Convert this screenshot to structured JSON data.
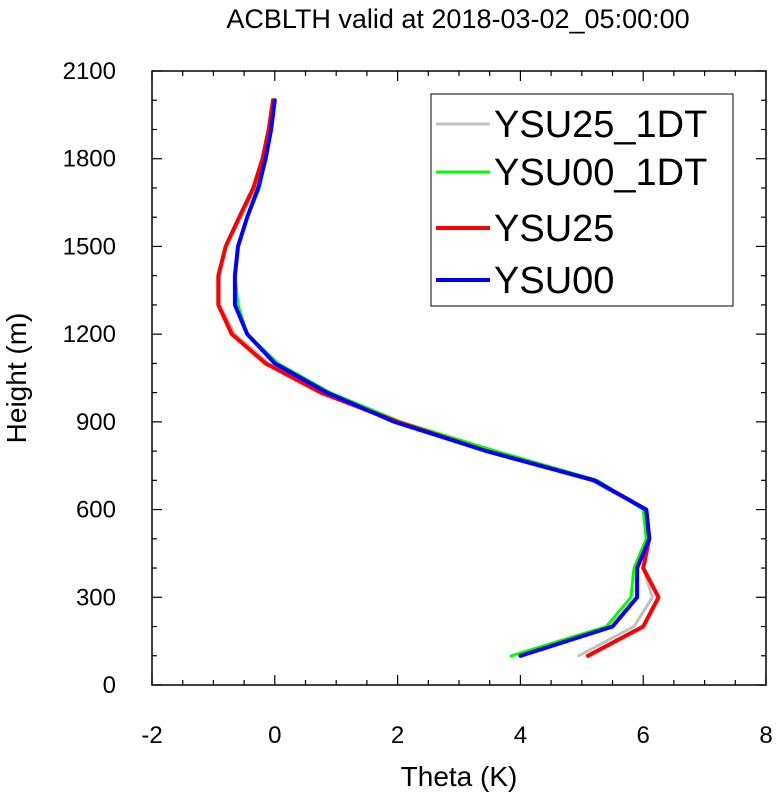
{
  "chart_data": {
    "type": "line",
    "title": "ACBLTH valid at 2018-03-02_05:00:00",
    "xlabel": "Theta (K)",
    "ylabel": "Height (m)",
    "xlim": [
      -2,
      8
    ],
    "ylim": [
      0,
      2100
    ],
    "xticks": [
      "-2",
      "0",
      "2",
      "4",
      "6",
      "8"
    ],
    "yticks": [
      "0",
      "300",
      "600",
      "900",
      "1200",
      "1500",
      "1800",
      "2100"
    ],
    "legend_position": "top-right",
    "series": [
      {
        "name": "YSU25_1DT",
        "color": "#c0c0c0",
        "width": 3,
        "points": [
          [
            4.95,
            100
          ],
          [
            5.85,
            200
          ],
          [
            6.15,
            300
          ],
          [
            6.0,
            400
          ],
          [
            6.1,
            500
          ],
          [
            6.05,
            600
          ],
          [
            5.15,
            700
          ],
          [
            3.45,
            800
          ],
          [
            1.95,
            900
          ],
          [
            0.8,
            1000
          ],
          [
            -0.1,
            1100
          ],
          [
            -0.65,
            1200
          ],
          [
            -0.9,
            1300
          ],
          [
            -0.9,
            1400
          ],
          [
            -0.8,
            1500
          ],
          [
            -0.55,
            1600
          ],
          [
            -0.32,
            1700
          ],
          [
            -0.18,
            1800
          ],
          [
            -0.08,
            1900
          ],
          [
            -0.02,
            2000
          ]
        ]
      },
      {
        "name": "YSU00_1DT",
        "color": "#00ff00",
        "width": 3,
        "points": [
          [
            3.85,
            100
          ],
          [
            5.4,
            200
          ],
          [
            5.8,
            300
          ],
          [
            5.85,
            400
          ],
          [
            6.05,
            500
          ],
          [
            6.0,
            600
          ],
          [
            5.25,
            700
          ],
          [
            3.6,
            800
          ],
          [
            2.05,
            900
          ],
          [
            0.9,
            1000
          ],
          [
            0.05,
            1100
          ],
          [
            -0.45,
            1200
          ],
          [
            -0.6,
            1300
          ],
          [
            -0.65,
            1400
          ],
          [
            -0.6,
            1500
          ],
          [
            -0.45,
            1600
          ],
          [
            -0.25,
            1700
          ],
          [
            -0.15,
            1800
          ],
          [
            -0.06,
            1900
          ],
          [
            0.0,
            2000
          ]
        ]
      },
      {
        "name": "YSU25",
        "color": "#ff0000",
        "width": 4,
        "points": [
          [
            5.1,
            100
          ],
          [
            6.0,
            200
          ],
          [
            6.25,
            300
          ],
          [
            6.0,
            400
          ],
          [
            6.1,
            500
          ],
          [
            6.05,
            600
          ],
          [
            5.2,
            700
          ],
          [
            3.45,
            800
          ],
          [
            2.0,
            900
          ],
          [
            0.75,
            1000
          ],
          [
            -0.15,
            1100
          ],
          [
            -0.7,
            1200
          ],
          [
            -0.92,
            1300
          ],
          [
            -0.92,
            1400
          ],
          [
            -0.8,
            1500
          ],
          [
            -0.58,
            1600
          ],
          [
            -0.35,
            1700
          ],
          [
            -0.2,
            1800
          ],
          [
            -0.1,
            1900
          ],
          [
            -0.03,
            2000
          ]
        ]
      },
      {
        "name": "YSU00",
        "color": "#0000ff",
        "width": 4,
        "points": [
          [
            4.0,
            100
          ],
          [
            5.5,
            200
          ],
          [
            5.9,
            300
          ],
          [
            5.9,
            400
          ],
          [
            6.1,
            500
          ],
          [
            6.05,
            600
          ],
          [
            5.2,
            700
          ],
          [
            3.45,
            800
          ],
          [
            1.95,
            900
          ],
          [
            0.85,
            1000
          ],
          [
            0.0,
            1100
          ],
          [
            -0.45,
            1200
          ],
          [
            -0.65,
            1300
          ],
          [
            -0.65,
            1400
          ],
          [
            -0.6,
            1500
          ],
          [
            -0.45,
            1600
          ],
          [
            -0.27,
            1700
          ],
          [
            -0.15,
            1800
          ],
          [
            -0.06,
            1900
          ],
          [
            0.0,
            2000
          ]
        ]
      }
    ]
  }
}
